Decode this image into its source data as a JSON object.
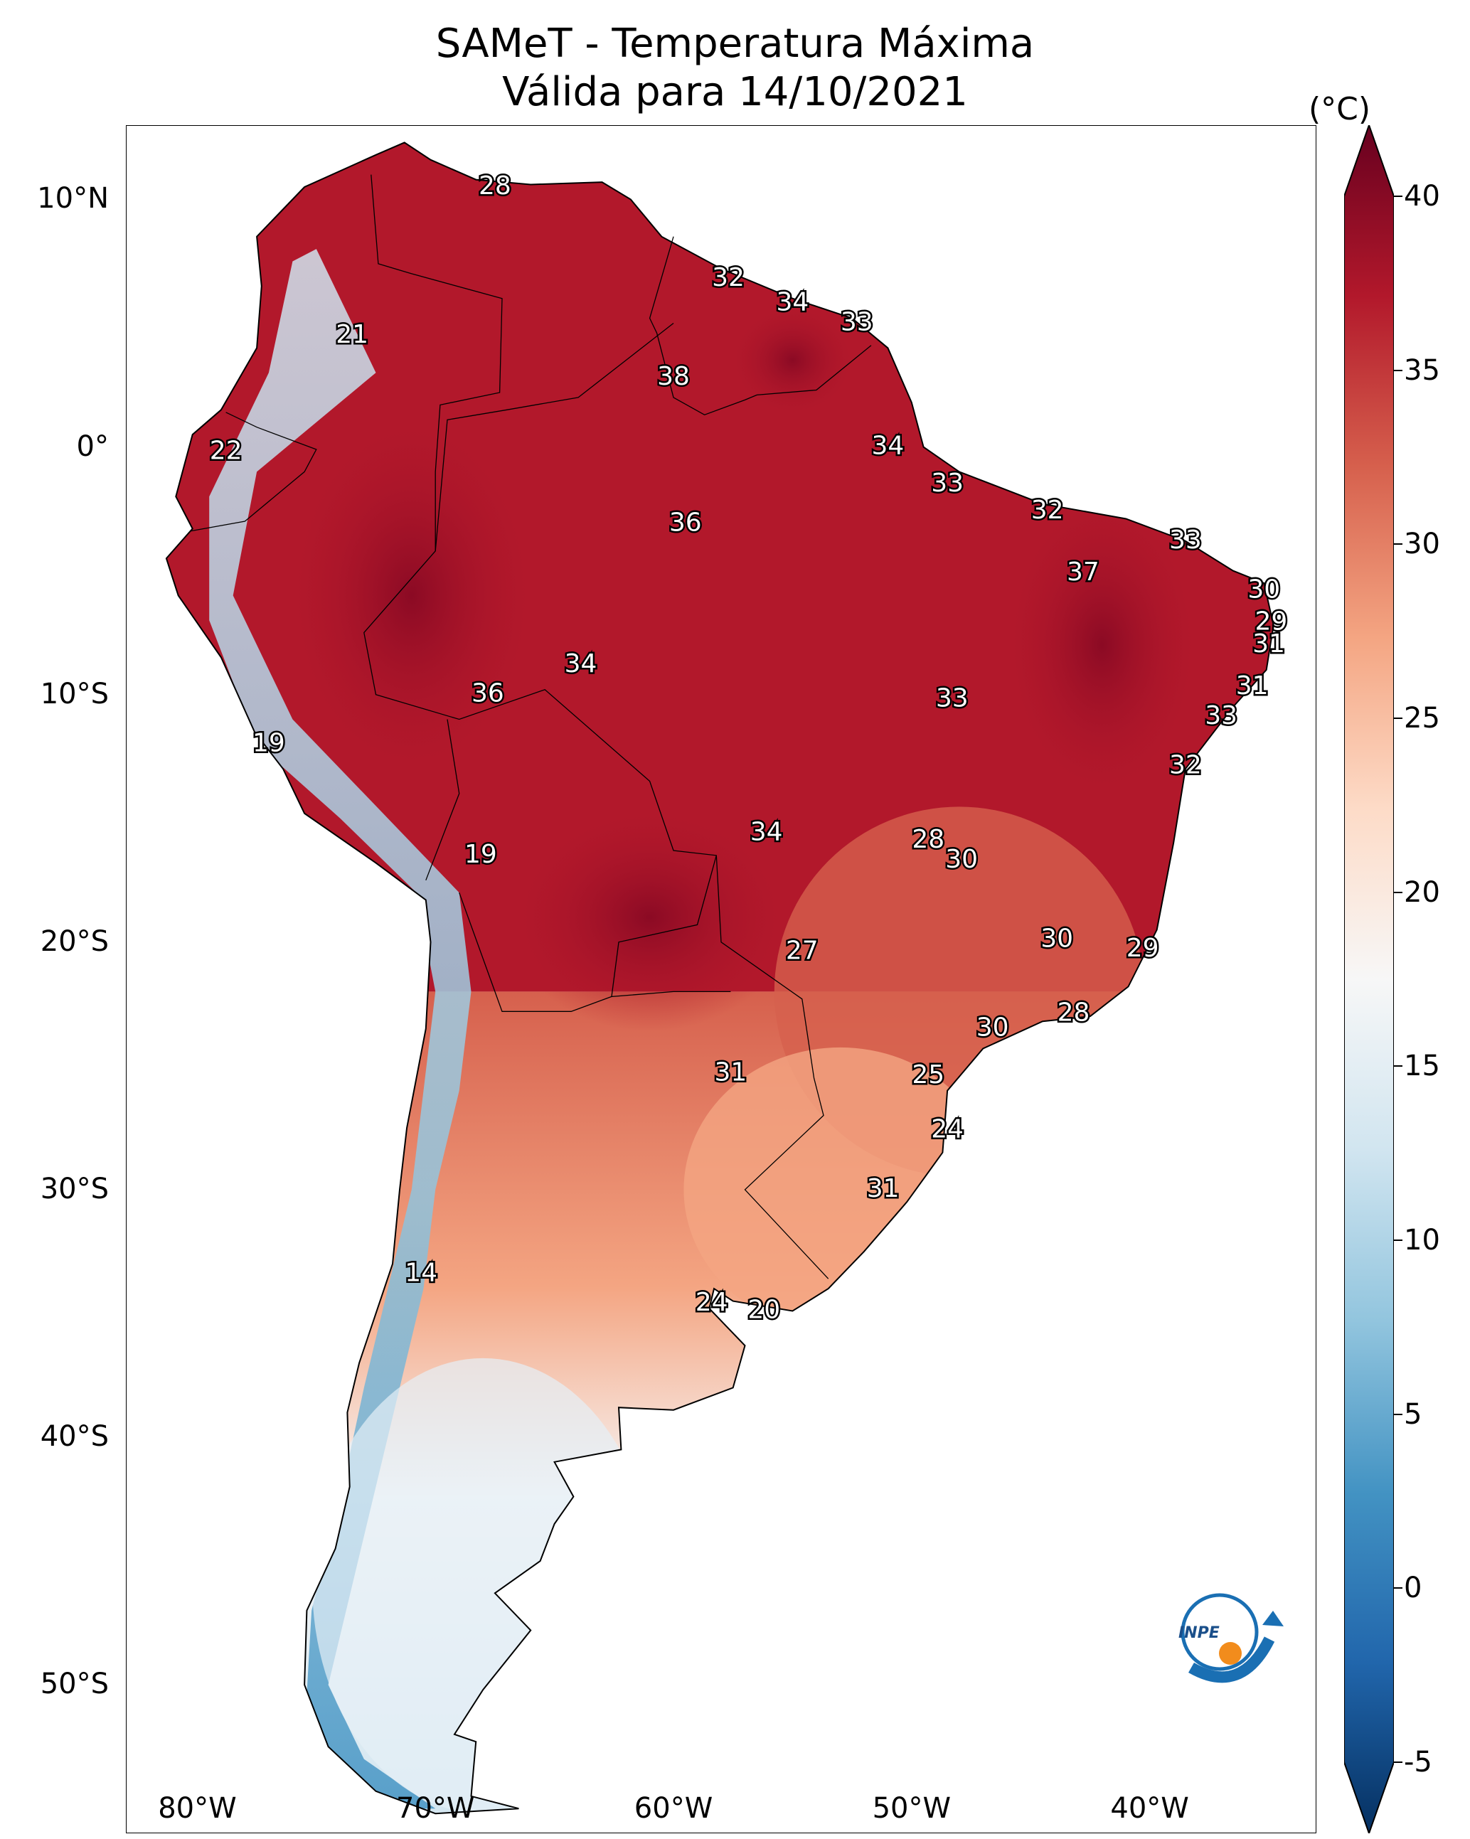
{
  "title": "SAMeT - Temperatura Máxima",
  "subtitle": "Válida para 14/10/2021",
  "colorbar": {
    "unit": "(°C)",
    "ticks": [
      "-5",
      "0",
      "5",
      "10",
      "15",
      "20",
      "25",
      "30",
      "35",
      "40"
    ],
    "range": [
      -5,
      40
    ],
    "colors": [
      "#053061",
      "#2166ac",
      "#4393c3",
      "#92c5de",
      "#d1e5f0",
      "#f7f7f7",
      "#fddbc7",
      "#f4a582",
      "#d6604d",
      "#b2182b",
      "#67001f"
    ]
  },
  "axes": {
    "lat_labels": [
      "10°N",
      "0°",
      "10°S",
      "20°S",
      "30°S",
      "40°S",
      "50°S"
    ],
    "lon_labels": [
      "80°W",
      "70°W",
      "60°W",
      "50°W",
      "40°W"
    ]
  },
  "logo_text": "INPE",
  "chart_data": {
    "type": "heatmap",
    "title": "SAMeT - Temperatura Máxima",
    "subtitle": "Válida para 14/10/2021",
    "value_unit": "(°C)",
    "color_range": [
      -5,
      40
    ],
    "x_range": [
      -83,
      -33
    ],
    "y_range": [
      -56,
      13
    ],
    "city_labels": [
      {
        "lon": -67.5,
        "lat": 10.5,
        "value": "28"
      },
      {
        "lon": -57.7,
        "lat": 6.8,
        "value": "32"
      },
      {
        "lon": -55.0,
        "lat": 5.8,
        "value": "34"
      },
      {
        "lon": -52.3,
        "lat": 5.0,
        "value": "33"
      },
      {
        "lon": -73.5,
        "lat": 4.5,
        "value": "21"
      },
      {
        "lon": -60.0,
        "lat": 2.8,
        "value": "38"
      },
      {
        "lon": -51.0,
        "lat": 0.0,
        "value": "34"
      },
      {
        "lon": -78.8,
        "lat": -0.2,
        "value": "22"
      },
      {
        "lon": -48.5,
        "lat": -1.5,
        "value": "33"
      },
      {
        "lon": -44.3,
        "lat": -2.6,
        "value": "32"
      },
      {
        "lon": -59.5,
        "lat": -3.1,
        "value": "36"
      },
      {
        "lon": -38.5,
        "lat": -3.8,
        "value": "33"
      },
      {
        "lon": -42.8,
        "lat": -5.1,
        "value": "37"
      },
      {
        "lon": -35.2,
        "lat": -5.8,
        "value": "30"
      },
      {
        "lon": -34.9,
        "lat": -7.1,
        "value": "29"
      },
      {
        "lon": -35.0,
        "lat": -8.0,
        "value": "31"
      },
      {
        "lon": -63.9,
        "lat": -8.8,
        "value": "34"
      },
      {
        "lon": -67.8,
        "lat": -10.0,
        "value": "36"
      },
      {
        "lon": -48.3,
        "lat": -10.2,
        "value": "33"
      },
      {
        "lon": -35.7,
        "lat": -9.7,
        "value": "31"
      },
      {
        "lon": -37.0,
        "lat": -10.9,
        "value": "33"
      },
      {
        "lon": -38.5,
        "lat": -12.9,
        "value": "32"
      },
      {
        "lon": -77.0,
        "lat": -12.0,
        "value": "19"
      },
      {
        "lon": -56.1,
        "lat": -15.6,
        "value": "34"
      },
      {
        "lon": -49.3,
        "lat": -15.9,
        "value": "28"
      },
      {
        "lon": -47.9,
        "lat": -16.7,
        "value": "30"
      },
      {
        "lon": -68.1,
        "lat": -16.5,
        "value": "19"
      },
      {
        "lon": -43.9,
        "lat": -19.9,
        "value": "30"
      },
      {
        "lon": -40.3,
        "lat": -20.3,
        "value": "29"
      },
      {
        "lon": -54.6,
        "lat": -20.4,
        "value": "27"
      },
      {
        "lon": -43.2,
        "lat": -22.9,
        "value": "28"
      },
      {
        "lon": -46.6,
        "lat": -23.5,
        "value": "30"
      },
      {
        "lon": -49.3,
        "lat": -25.4,
        "value": "25"
      },
      {
        "lon": -57.6,
        "lat": -25.3,
        "value": "31"
      },
      {
        "lon": -48.5,
        "lat": -27.6,
        "value": "24"
      },
      {
        "lon": -51.2,
        "lat": -30.0,
        "value": "31"
      },
      {
        "lon": -70.6,
        "lat": -33.4,
        "value": "14"
      },
      {
        "lon": -58.4,
        "lat": -34.6,
        "value": "24"
      },
      {
        "lon": -56.2,
        "lat": -34.9,
        "value": "20"
      }
    ]
  }
}
